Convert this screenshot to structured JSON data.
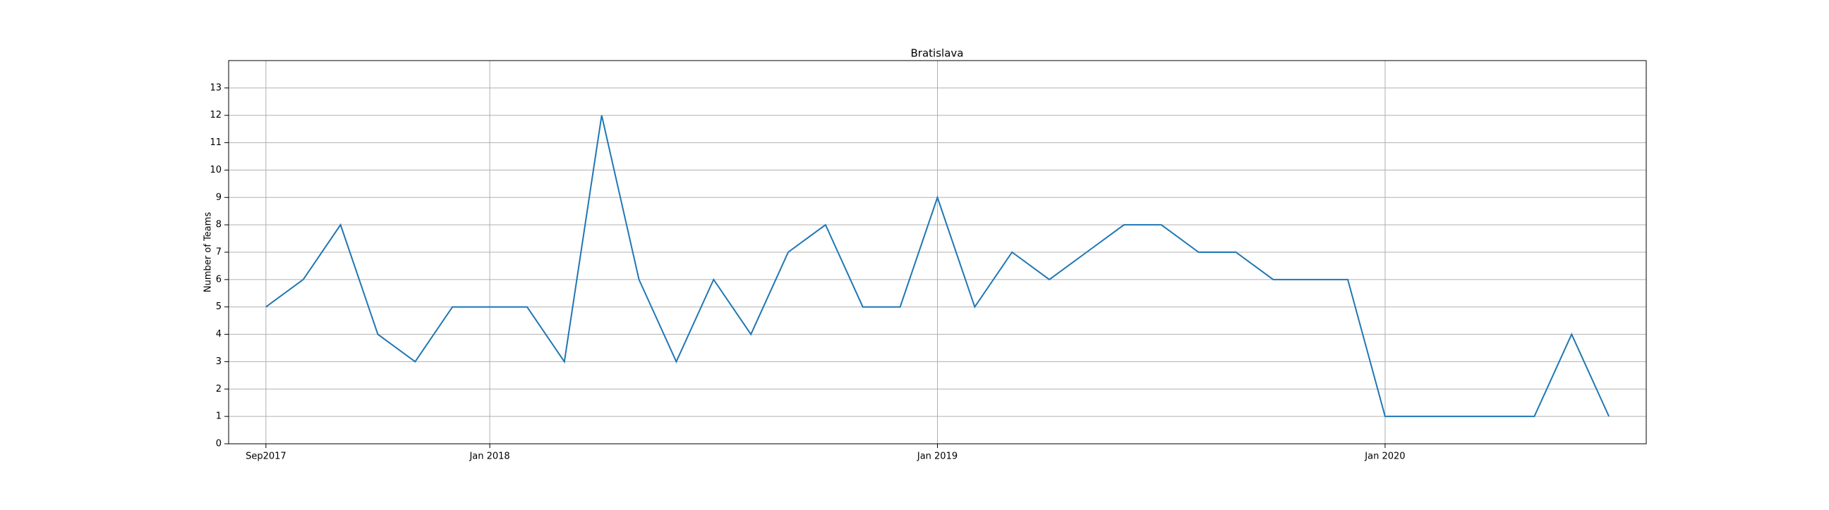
{
  "chart_data": {
    "type": "line",
    "title": "Bratislava",
    "ylabel": "Number of Teams",
    "categories": [
      "Sep2017",
      null,
      null,
      null,
      null,
      null,
      "Jan 2018",
      null,
      null,
      null,
      null,
      null,
      null,
      null,
      null,
      null,
      null,
      null,
      "Jan 2019",
      null,
      null,
      null,
      null,
      null,
      null,
      null,
      null,
      null,
      null,
      null,
      "Jan 2020",
      null,
      null,
      null,
      null,
      null,
      null
    ],
    "series": [
      {
        "name": "Bratislava",
        "color": "#1f77b4",
        "values": [
          5,
          6,
          8,
          4,
          3,
          5,
          5,
          5,
          3,
          12,
          6,
          3,
          6,
          4,
          7,
          8,
          5,
          5,
          9,
          5,
          7,
          6,
          7,
          8,
          8,
          7,
          7,
          6,
          6,
          6,
          1,
          1,
          1,
          1,
          1,
          4,
          1
        ]
      }
    ],
    "ylim": [
      0,
      14
    ],
    "yticks": [
      0,
      1,
      2,
      3,
      4,
      5,
      6,
      7,
      8,
      9,
      10,
      11,
      12,
      13
    ],
    "grid": true
  }
}
